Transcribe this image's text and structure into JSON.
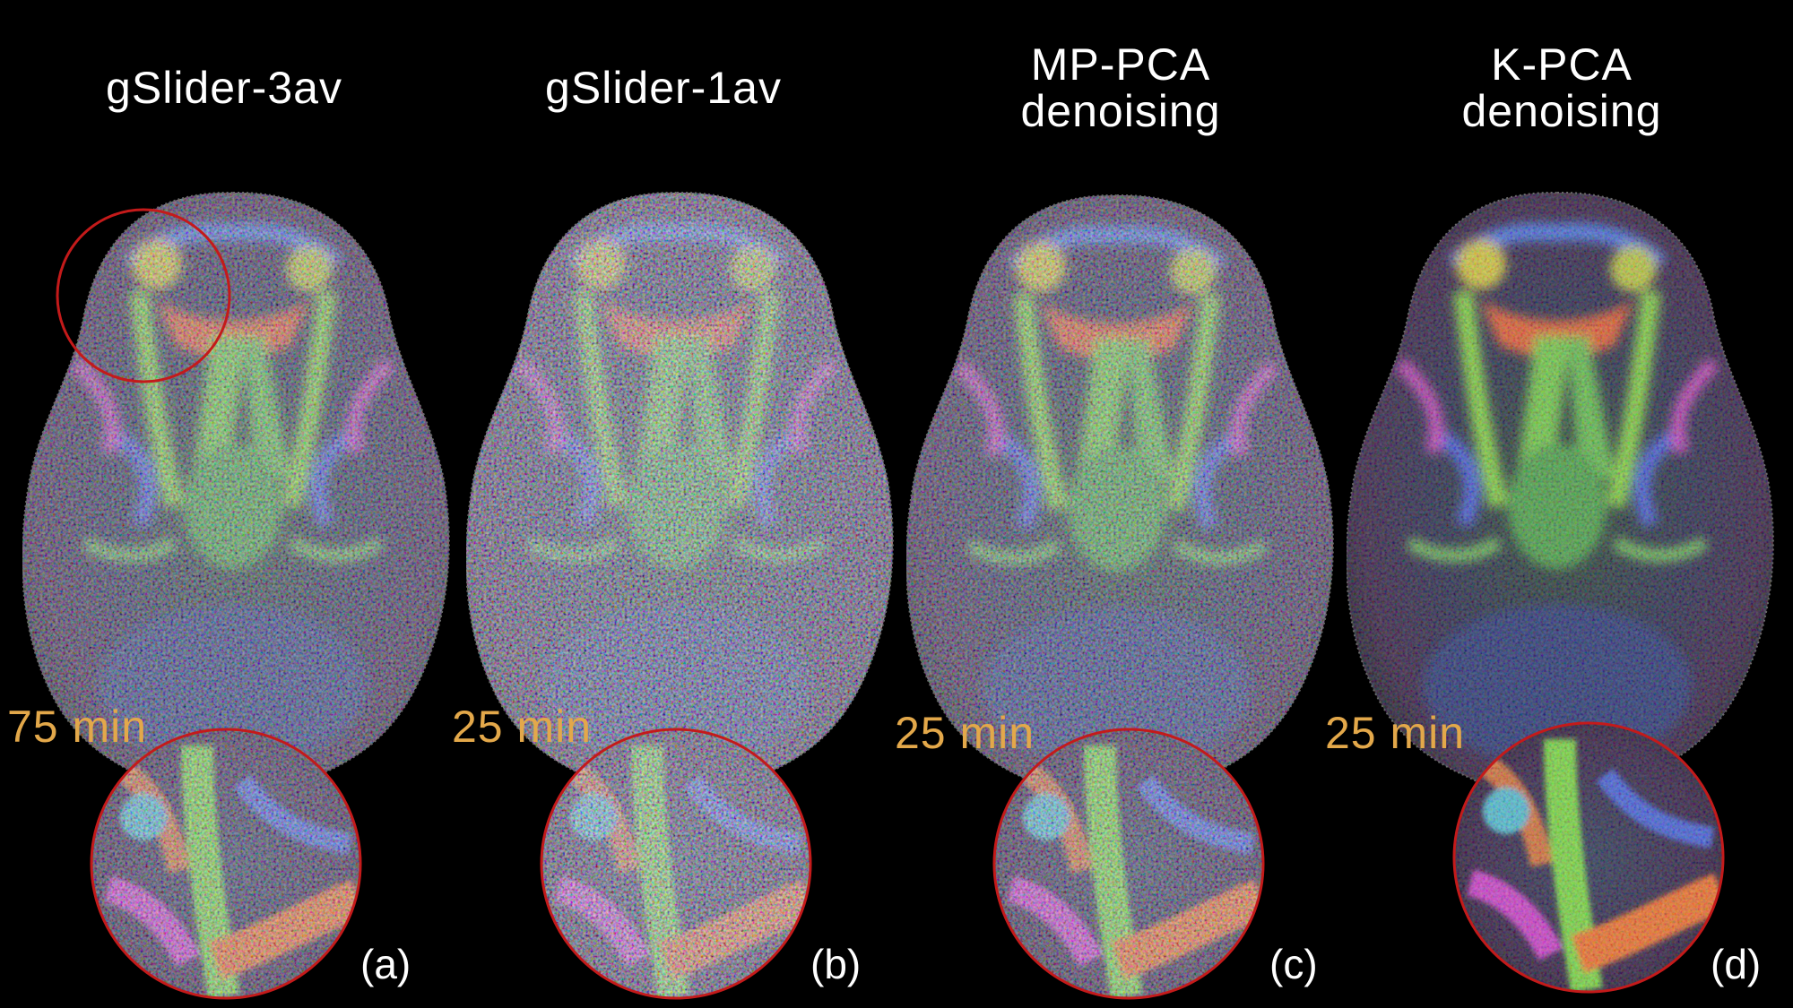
{
  "figure": {
    "background": "#000000",
    "time_color": "#e3a84a",
    "circle_color": "#c41a1a",
    "panels": [
      {
        "title": "gSlider-3av",
        "time": "75 min",
        "label": "(a)"
      },
      {
        "title": "gSlider-1av",
        "time": "25 min",
        "label": "(b)"
      },
      {
        "title": "MP-PCA\ndenoising",
        "time": "25 min",
        "label": "(c)"
      },
      {
        "title": "K-PCA\ndenoising",
        "time": "25 min",
        "label": "(d)"
      }
    ]
  }
}
